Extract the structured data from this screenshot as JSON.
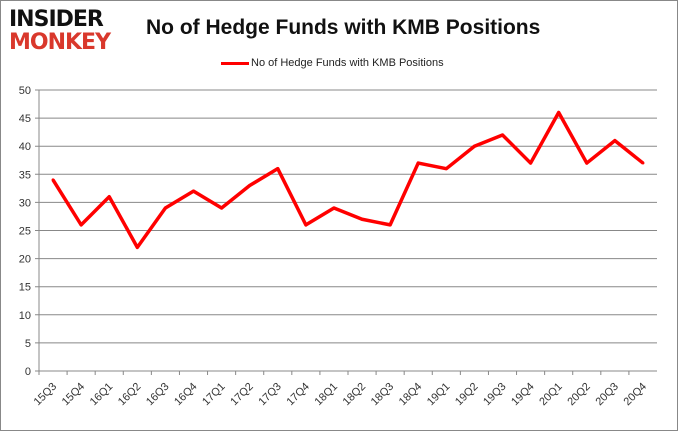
{
  "logo": {
    "line1": "INSIDER",
    "line2": "MONKEY"
  },
  "chart_data": {
    "type": "line",
    "title": "No of Hedge Funds with KMB Positions",
    "categories": [
      "15Q3",
      "15Q4",
      "16Q1",
      "16Q2",
      "16Q3",
      "16Q4",
      "17Q1",
      "17Q2",
      "17Q3",
      "17Q4",
      "18Q1",
      "18Q2",
      "18Q3",
      "18Q4",
      "19Q1",
      "19Q2",
      "19Q3",
      "19Q4",
      "20Q1",
      "20Q2",
      "20Q3",
      "20Q4"
    ],
    "series": [
      {
        "name": "No of Hedge Funds with KMB Positions",
        "color": "#ff0000",
        "values": [
          34,
          26,
          31,
          22,
          29,
          32,
          29,
          33,
          36,
          26,
          29,
          27,
          26,
          37,
          36,
          40,
          42,
          37,
          46,
          37,
          41,
          37
        ]
      }
    ],
    "ylim": [
      0,
      50
    ],
    "yticks": [
      0,
      5,
      10,
      15,
      20,
      25,
      30,
      35,
      40,
      45,
      50
    ],
    "grid": true,
    "legend": "top-center",
    "xlabel": "",
    "ylabel": ""
  }
}
